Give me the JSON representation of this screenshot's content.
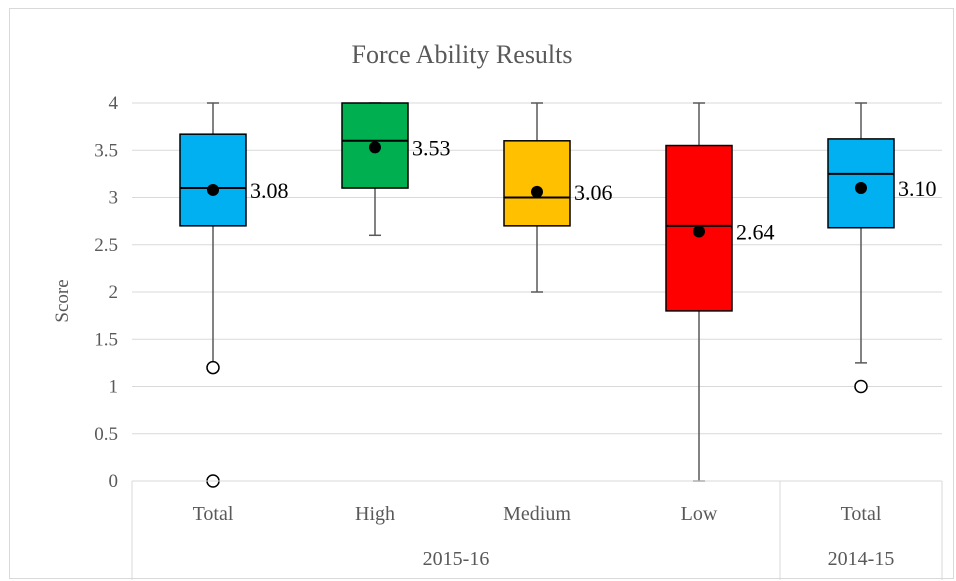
{
  "chart_data": {
    "type": "box",
    "title": "Force Ability Results",
    "ylabel": "Score",
    "xlabel": "",
    "ylim": [
      0,
      4
    ],
    "yticks": [
      "0",
      "0.5",
      "1",
      "1.5",
      "2",
      "2.5",
      "3",
      "3.5",
      "4"
    ],
    "grid": true,
    "groups": [
      {
        "name": "2015-16",
        "categories": [
          "Total",
          "High",
          "Medium",
          "Low"
        ]
      },
      {
        "name": "2014-15",
        "categories": [
          "Total"
        ]
      }
    ],
    "boxes": [
      {
        "category": "Total",
        "group": "2015-16",
        "color": "#00B0F0",
        "min": 0,
        "whisker_low": 1.2,
        "q1": 2.7,
        "median": 3.1,
        "q3": 3.67,
        "whisker_high": 4,
        "mean": 3.08,
        "mean_label": "3.08",
        "outliers": [
          1.2,
          0
        ]
      },
      {
        "category": "High",
        "group": "2015-16",
        "color": "#00B050",
        "whisker_low": 2.6,
        "q1": 3.1,
        "median": 3.6,
        "q3": 4.0,
        "whisker_high": 4,
        "mean": 3.53,
        "mean_label": "3.53",
        "outliers": []
      },
      {
        "category": "Medium",
        "group": "2015-16",
        "color": "#FFC000",
        "whisker_low": 2.0,
        "q1": 2.7,
        "median": 3.0,
        "q3": 3.6,
        "whisker_high": 4,
        "mean": 3.06,
        "mean_label": "3.06",
        "outliers": []
      },
      {
        "category": "Low",
        "group": "2015-16",
        "color": "#FF0000",
        "whisker_low": 0,
        "q1": 1.8,
        "median": 2.7,
        "q3": 3.55,
        "whisker_high": 4,
        "mean": 2.64,
        "mean_label": "2.64",
        "outliers": []
      },
      {
        "category": "Total",
        "group": "2014-15",
        "color": "#00B0F0",
        "whisker_low": 1.25,
        "q1": 2.68,
        "median": 3.25,
        "q3": 3.62,
        "whisker_high": 4,
        "mean": 3.1,
        "mean_label": "3.10",
        "outliers": [
          1.0
        ]
      }
    ]
  }
}
